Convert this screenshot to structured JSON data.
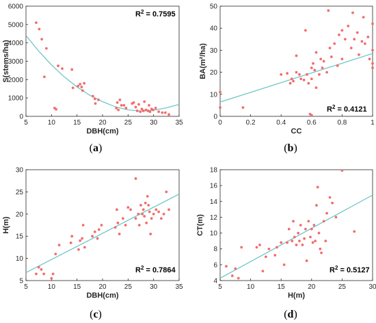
{
  "figure": {
    "panels": [
      {
        "id": "a",
        "caption_letter": "a",
        "r2_label": "R",
        "r2_sup": "2",
        "r2_value": " = 0.7595"
      },
      {
        "id": "b",
        "caption_letter": "b",
        "r2_label": "R",
        "r2_sup": "2",
        "r2_value": " = 0.4121"
      },
      {
        "id": "c",
        "caption_letter": "c",
        "r2_label": "R",
        "r2_sup": "2",
        "r2_value": " = 0.7864"
      },
      {
        "id": "d",
        "caption_letter": "d",
        "r2_label": "R",
        "r2_sup": "2",
        "r2_value": " = 0.5127"
      }
    ]
  },
  "colors": {
    "points": "#f26d6d",
    "fit": "#6fc7c7",
    "axis": "#262626",
    "background": "#ffffff"
  },
  "chart_data": [
    {
      "type": "scatter",
      "panel": "a",
      "xlabel": "DBH(cm)",
      "ylabel": "S(stems/ha)",
      "xlim": [
        5,
        35
      ],
      "ylim": [
        0,
        6000
      ],
      "xticks": [
        5,
        10,
        15,
        20,
        25,
        30,
        35
      ],
      "yticks": [
        0,
        1000,
        2000,
        3000,
        4000,
        5000,
        6000
      ],
      "grid": false,
      "r2": 0.7595,
      "fit": {
        "kind": "quadratic",
        "x": [
          5,
          7.5,
          10,
          12.5,
          15,
          17.5,
          20,
          22.5,
          25,
          27.5,
          30,
          32.5,
          35
        ],
        "y": [
          4400,
          3550,
          2800,
          2150,
          1600,
          1150,
          800,
          520,
          350,
          290,
          330,
          460,
          650
        ]
      },
      "points": [
        [
          7,
          5100
        ],
        [
          7.6,
          4750
        ],
        [
          8.1,
          4200
        ],
        [
          8.6,
          2150
        ],
        [
          9,
          3700
        ],
        [
          10.6,
          450
        ],
        [
          10.9,
          380
        ],
        [
          11.3,
          2750
        ],
        [
          12.1,
          2600
        ],
        [
          14,
          2550
        ],
        [
          14.2,
          1550
        ],
        [
          15.2,
          1650
        ],
        [
          15.6,
          1750
        ],
        [
          15.9,
          1600
        ],
        [
          16.1,
          1400
        ],
        [
          16.4,
          1800
        ],
        [
          18.1,
          1100
        ],
        [
          18.5,
          950
        ],
        [
          18.6,
          700
        ],
        [
          19.2,
          900
        ],
        [
          22.7,
          450
        ],
        [
          22.9,
          750
        ],
        [
          23.1,
          350
        ],
        [
          23.4,
          900
        ],
        [
          23.7,
          600
        ],
        [
          24.2,
          600
        ],
        [
          24.6,
          450
        ],
        [
          25.8,
          700
        ],
        [
          26.1,
          750
        ],
        [
          26.5,
          500
        ],
        [
          26.8,
          300
        ],
        [
          27.1,
          650
        ],
        [
          27.4,
          250
        ],
        [
          27.7,
          400
        ],
        [
          28,
          300
        ],
        [
          28.2,
          800
        ],
        [
          28.5,
          350
        ],
        [
          28.9,
          300
        ],
        [
          29.1,
          600
        ],
        [
          29.3,
          250
        ],
        [
          29.6,
          400
        ],
        [
          29.9,
          350
        ],
        [
          30.4,
          450
        ],
        [
          31,
          250
        ],
        [
          31.7,
          200
        ],
        [
          32.3,
          200
        ],
        [
          33,
          100
        ]
      ]
    },
    {
      "type": "scatter",
      "panel": "b",
      "xlabel": "CC",
      "ylabel": "BA(m²/ha)",
      "xlim": [
        0,
        1
      ],
      "ylim": [
        0,
        50
      ],
      "xticks": [
        0,
        0.2,
        0.4,
        0.6,
        0.8,
        1
      ],
      "yticks": [
        0,
        10,
        20,
        30,
        40,
        50
      ],
      "grid": false,
      "r2": 0.4121,
      "fit": {
        "kind": "linear",
        "x": [
          0,
          1
        ],
        "y": [
          6.5,
          28.5
        ]
      },
      "points": [
        [
          0,
          11
        ],
        [
          0,
          4
        ],
        [
          0.15,
          4
        ],
        [
          0.4,
          19
        ],
        [
          0.44,
          19.5
        ],
        [
          0.46,
          15
        ],
        [
          0.47,
          17
        ],
        [
          0.48,
          16
        ],
        [
          0.5,
          27.5
        ],
        [
          0.5,
          20
        ],
        [
          0.52,
          19
        ],
        [
          0.53,
          17
        ],
        [
          0.55,
          16.5
        ],
        [
          0.56,
          39
        ],
        [
          0.57,
          19
        ],
        [
          0.58,
          15
        ],
        [
          0.6,
          22
        ],
        [
          0.6,
          17
        ],
        [
          0.61,
          24
        ],
        [
          0.62,
          21
        ],
        [
          0.63,
          13
        ],
        [
          0.63,
          29
        ],
        [
          0.65,
          19
        ],
        [
          0.66,
          26
        ],
        [
          0.67,
          22
        ],
        [
          0.68,
          25
        ],
        [
          0.7,
          20
        ],
        [
          0.71,
          48
        ],
        [
          0.72,
          31
        ],
        [
          0.73,
          27
        ],
        [
          0.75,
          33
        ],
        [
          0.77,
          23
        ],
        [
          0.78,
          37
        ],
        [
          0.8,
          26
        ],
        [
          0.8,
          39
        ],
        [
          0.82,
          35
        ],
        [
          0.84,
          41
        ],
        [
          0.86,
          31
        ],
        [
          0.87,
          47
        ],
        [
          0.88,
          35
        ],
        [
          0.9,
          38
        ],
        [
          0.91,
          28
        ],
        [
          0.93,
          34
        ],
        [
          0.94,
          45
        ],
        [
          0.95,
          33
        ],
        [
          0.97,
          36
        ],
        [
          0.98,
          26
        ],
        [
          1,
          22
        ],
        [
          1,
          24
        ],
        [
          1,
          42
        ],
        [
          1,
          30
        ],
        [
          0.59,
          1
        ],
        [
          0.6,
          0.5
        ]
      ]
    },
    {
      "type": "scatter",
      "panel": "c",
      "xlabel": "DBH(cm)",
      "ylabel": "H(m)",
      "xlim": [
        5,
        35
      ],
      "ylim": [
        5,
        30
      ],
      "xticks": [
        5,
        10,
        15,
        20,
        25,
        30,
        35
      ],
      "yticks": [
        5,
        10,
        15,
        20,
        25,
        30
      ],
      "grid": false,
      "r2": 0.7864,
      "fit": {
        "kind": "linear",
        "x": [
          5,
          35
        ],
        "y": [
          6.8,
          24.5
        ]
      },
      "points": [
        [
          7,
          6.5
        ],
        [
          7.5,
          8
        ],
        [
          8,
          7.5
        ],
        [
          8.5,
          6.5
        ],
        [
          10,
          5.5
        ],
        [
          10.3,
          6.5
        ],
        [
          10.8,
          11
        ],
        [
          11.5,
          13
        ],
        [
          13.8,
          13.5
        ],
        [
          14,
          15
        ],
        [
          15.3,
          12
        ],
        [
          15.6,
          14
        ],
        [
          16,
          14.5
        ],
        [
          16.2,
          17.5
        ],
        [
          16.5,
          12.5
        ],
        [
          18,
          15
        ],
        [
          18.5,
          16
        ],
        [
          19,
          14.5
        ],
        [
          19.3,
          16.5
        ],
        [
          19.8,
          17.5
        ],
        [
          22.5,
          17
        ],
        [
          22.8,
          21
        ],
        [
          23,
          18
        ],
        [
          23.3,
          15.5
        ],
        [
          24,
          19
        ],
        [
          24.5,
          17.5
        ],
        [
          25,
          21.5
        ],
        [
          25.5,
          21
        ],
        [
          26.5,
          28
        ],
        [
          26.5,
          19
        ],
        [
          27,
          20
        ],
        [
          27.2,
          17.5
        ],
        [
          27.5,
          22
        ],
        [
          27.8,
          20
        ],
        [
          28,
          21
        ],
        [
          28.2,
          19.5
        ],
        [
          28.4,
          22.5
        ],
        [
          28.6,
          18
        ],
        [
          28.8,
          24
        ],
        [
          29,
          22
        ],
        [
          29.2,
          20.5
        ],
        [
          29.4,
          15.5
        ],
        [
          29.6,
          19
        ],
        [
          30,
          20
        ],
        [
          30.5,
          21
        ],
        [
          31,
          20.5
        ],
        [
          31.5,
          19
        ],
        [
          32,
          20
        ],
        [
          32.5,
          25
        ],
        [
          33,
          21
        ]
      ]
    },
    {
      "type": "scatter",
      "panel": "d",
      "xlabel": "H(m)",
      "ylabel": "CT(m)",
      "xlim": [
        5,
        30
      ],
      "ylim": [
        4,
        18
      ],
      "xticks": [
        5,
        10,
        15,
        20,
        25,
        30
      ],
      "yticks": [
        4,
        6,
        8,
        10,
        12,
        14,
        16,
        18
      ],
      "grid": false,
      "r2": 0.5127,
      "fit": {
        "kind": "linear",
        "x": [
          5,
          30
        ],
        "y": [
          4.3,
          14.8
        ]
      },
      "points": [
        [
          6,
          5.8
        ],
        [
          7,
          4.6
        ],
        [
          7.5,
          5.5
        ],
        [
          8,
          4.3
        ],
        [
          8.5,
          8.2
        ],
        [
          11,
          8.2
        ],
        [
          11.5,
          8.5
        ],
        [
          12,
          5.2
        ],
        [
          12.5,
          7
        ],
        [
          13,
          8
        ],
        [
          14,
          7.2
        ],
        [
          14.3,
          8.2
        ],
        [
          15,
          8.8
        ],
        [
          15.5,
          6
        ],
        [
          16,
          8.8
        ],
        [
          16.3,
          10.5
        ],
        [
          16.8,
          9
        ],
        [
          17,
          11.5
        ],
        [
          17.2,
          9.5
        ],
        [
          17.5,
          8.5
        ],
        [
          17.8,
          10
        ],
        [
          18,
          9
        ],
        [
          18.2,
          11
        ],
        [
          18.5,
          8.5
        ],
        [
          18.8,
          9.3
        ],
        [
          19,
          10.5
        ],
        [
          19.2,
          6.5
        ],
        [
          19.5,
          11.5
        ],
        [
          19.8,
          9.5
        ],
        [
          20,
          10.5
        ],
        [
          20.2,
          8.8
        ],
        [
          20.4,
          11
        ],
        [
          20.6,
          9
        ],
        [
          20.8,
          13.5
        ],
        [
          21,
          15.8
        ],
        [
          21.2,
          10
        ],
        [
          21.4,
          8
        ],
        [
          21.6,
          7.5
        ],
        [
          22,
          11.5
        ],
        [
          22.3,
          9
        ],
        [
          22.5,
          12.5
        ],
        [
          23,
          14.5
        ],
        [
          23.4,
          13.8
        ],
        [
          24,
          12
        ],
        [
          25,
          17.9
        ],
        [
          27,
          10.2
        ]
      ]
    }
  ]
}
